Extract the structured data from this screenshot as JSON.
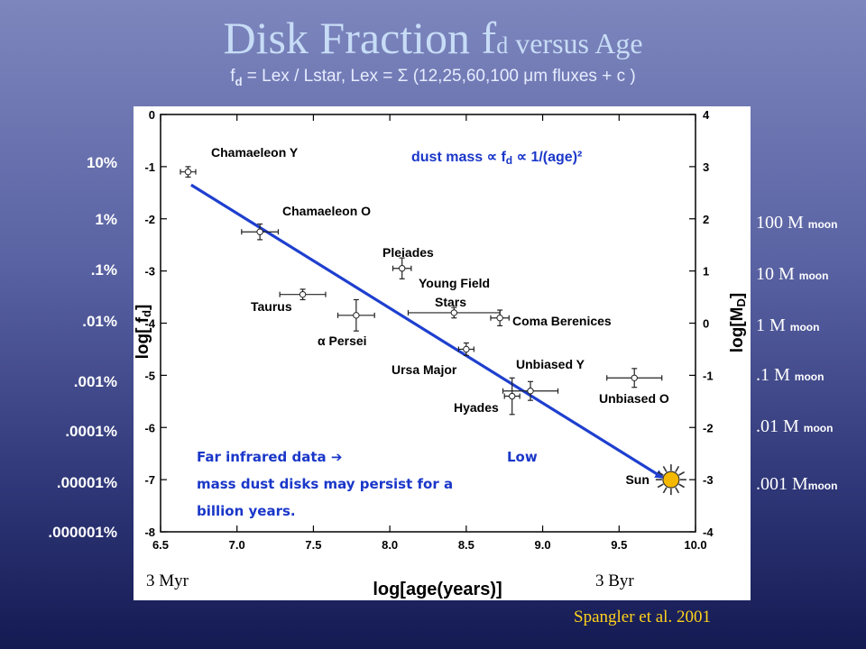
{
  "title": {
    "main": "Disk Fraction f",
    "sub": "d",
    "tail": " versus Age"
  },
  "formula": {
    "pre": "f",
    "sub": "d",
    "text": " = Lex / Lstar,   Lex = Σ (12,25,60,100 μm fluxes + c )"
  },
  "left_labels": [
    "10%",
    "1%",
    ".1%",
    ".01%",
    ".001%",
    ".0001%",
    ".00001%",
    ".000001%"
  ],
  "right_labels": [
    {
      "value": "100 M",
      "unit": "moon"
    },
    {
      "value": "10 M",
      "unit": "moon"
    },
    {
      "value": "1 M",
      "unit": "moon"
    },
    {
      "value": ".1 M",
      "unit": "moon"
    },
    {
      "value": ".01 M",
      "unit": "moon"
    },
    {
      "value": ".001 M",
      "unit": "moon"
    }
  ],
  "citation": "Spangler et al. 2001",
  "chart_data": {
    "type": "scatter",
    "xlabel": "log[age(years)]",
    "ylabel": "log[ f_d ]",
    "y2label": "log[M_D]",
    "xlim": [
      6.5,
      10.0
    ],
    "ylim": [
      -8,
      0
    ],
    "y2lim": [
      -4,
      4
    ],
    "xticks": [
      "6.5",
      "7.0",
      "7.5",
      "8.0",
      "8.5",
      "9.0",
      "9.5",
      "10.0"
    ],
    "yticks": [
      "0",
      "-1",
      "-2",
      "-3",
      "-4",
      "-5",
      "-6",
      "-7",
      "-8"
    ],
    "y2ticks": [
      "4",
      "3",
      "2",
      "1",
      "0",
      "-1",
      "-2",
      "-3",
      "-4"
    ],
    "points": [
      {
        "name": "Chamaeleon Y",
        "x": 6.68,
        "y": -1.1,
        "xerr": 0.05,
        "yerr": 0.1
      },
      {
        "name": "Chamaeleon O",
        "x": 7.15,
        "y": -2.25,
        "xerr": 0.12,
        "yerr": 0.15
      },
      {
        "name": "Pleiades",
        "x": 8.08,
        "y": -2.95,
        "xerr": 0.06,
        "yerr": 0.2
      },
      {
        "name": "Taurus",
        "x": 7.43,
        "y": -3.45,
        "xerr": 0.15,
        "yerr": 0.1
      },
      {
        "name": "Young Field Stars",
        "x": 8.42,
        "y": -3.8,
        "xerr": 0.3,
        "yerr": 0.1
      },
      {
        "name": "α Persei",
        "x": 7.78,
        "y": -3.85,
        "xerr": 0.12,
        "yerr": 0.3
      },
      {
        "name": "Coma Berenices",
        "x": 8.72,
        "y": -3.9,
        "xerr": 0.06,
        "yerr": 0.15
      },
      {
        "name": "Ursa Major",
        "x": 8.5,
        "y": -4.5,
        "xerr": 0.05,
        "yerr": 0.12
      },
      {
        "name": "Unbiased Y",
        "x": 8.92,
        "y": -5.3,
        "xerr": 0.18,
        "yerr": 0.18
      },
      {
        "name": "Hyades",
        "x": 8.8,
        "y": -5.4,
        "xerr": 0.05,
        "yerr": 0.35
      },
      {
        "name": "Unbiased O",
        "x": 9.6,
        "y": -5.05,
        "xerr": 0.18,
        "yerr": 0.18
      }
    ],
    "trend": {
      "x": [
        6.7,
        9.78
      ],
      "y": [
        -1.35,
        -6.95
      ]
    },
    "sun": {
      "label": "Sun",
      "x": 9.84,
      "y": -7.0
    },
    "relation": "dust mass ∝ f",
    "relation_sub": "d",
    "relation_tail": " ∝ 1/(age)²",
    "note": "Far infrared data ➔                   Low mass dust disks may persist for  a billion years.",
    "age_markers": [
      "3 Myr",
      "3 Byr"
    ]
  }
}
